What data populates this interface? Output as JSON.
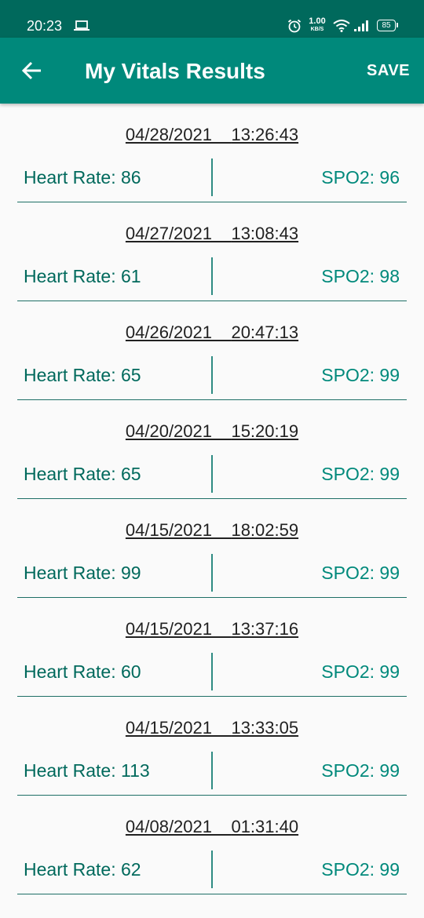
{
  "status_bar": {
    "time": "20:23",
    "net_speed_value": "1.00",
    "net_speed_unit": "KB/S",
    "battery_level": "85"
  },
  "app_bar": {
    "title": "My Vitals Results",
    "save_label": "SAVE",
    "background_color": "#00897b"
  },
  "results": [
    {
      "date": "04/28/2021",
      "time": "13:26:43",
      "heart_rate_text": "Heart Rate: 86",
      "spo2_text": "SPO2: 96"
    },
    {
      "date": "04/27/2021",
      "time": "13:08:43",
      "heart_rate_text": "Heart Rate: 61",
      "spo2_text": "SPO2: 98"
    },
    {
      "date": "04/26/2021",
      "time": "20:47:13",
      "heart_rate_text": "Heart Rate: 65",
      "spo2_text": "SPO2: 99"
    },
    {
      "date": "04/20/2021",
      "time": "15:20:19",
      "heart_rate_text": "Heart Rate: 65",
      "spo2_text": "SPO2: 99"
    },
    {
      "date": "04/15/2021",
      "time": "18:02:59",
      "heart_rate_text": "Heart Rate: 99",
      "spo2_text": "SPO2: 99"
    },
    {
      "date": "04/15/2021",
      "time": "13:37:16",
      "heart_rate_text": "Heart Rate: 60",
      "spo2_text": "SPO2: 99"
    },
    {
      "date": "04/15/2021",
      "time": "13:33:05",
      "heart_rate_text": "Heart Rate: 113",
      "spo2_text": "SPO2: 99"
    },
    {
      "date": "04/08/2021",
      "time": "01:31:40",
      "heart_rate_text": "Heart Rate: 62",
      "spo2_text": "SPO2: 99"
    }
  ]
}
